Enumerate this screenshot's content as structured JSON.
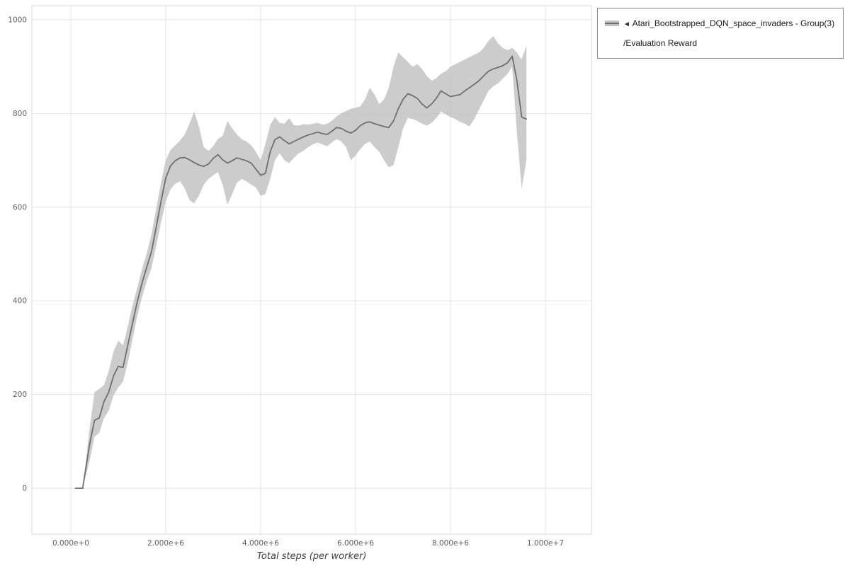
{
  "legend": {
    "entries": [
      {
        "arrow": "◄",
        "label": "Atari_Bootstrapped_DQN_space_invaders - Group(3)",
        "sublabel": "/Evaluation Reward",
        "line_color": "#6f6f6f",
        "band_color": "#c3c3c3"
      }
    ]
  },
  "chart_data": {
    "type": "line",
    "title": "",
    "xlabel": "Total steps (per worker)",
    "ylabel": "",
    "grid": true,
    "legend_position": "outside-top-right",
    "xlim": [
      -820000,
      10970000
    ],
    "ylim": [
      -98,
      1030
    ],
    "x_tick_values": [
      0,
      2000000,
      4000000,
      6000000,
      8000000,
      10000000
    ],
    "x_tick_labels": [
      "0.000e+0",
      "2.000e+6",
      "4.000e+6",
      "6.000e+6",
      "8.000e+6",
      "1.000e+7"
    ],
    "y_tick_values": [
      0,
      200,
      400,
      600,
      800,
      1000
    ],
    "y_tick_labels": [
      "0",
      "200",
      "400",
      "600",
      "800",
      "1000"
    ],
    "grid_color": "#e4e4e4",
    "frame_color": "#dadada",
    "plot_bg": "#ffffff",
    "series": [
      {
        "name": "Atari_Bootstrapped_DQN_space_invaders - Group(3)/Evaluation Reward",
        "line_color": "#6f6f6f",
        "band_color": "#c3c3c3",
        "x": [
          100000,
          250000,
          400000,
          500000,
          600000,
          700000,
          800000,
          900000,
          1000000,
          1100000,
          1200000,
          1300000,
          1400000,
          1500000,
          1600000,
          1700000,
          1800000,
          1900000,
          2000000,
          2100000,
          2200000,
          2300000,
          2400000,
          2500000,
          2600000,
          2700000,
          2800000,
          2900000,
          3000000,
          3100000,
          3200000,
          3300000,
          3400000,
          3500000,
          3600000,
          3700000,
          3800000,
          3900000,
          4000000,
          4100000,
          4200000,
          4300000,
          4400000,
          4500000,
          4600000,
          4700000,
          4800000,
          4900000,
          5000000,
          5100000,
          5200000,
          5300000,
          5400000,
          5500000,
          5600000,
          5700000,
          5800000,
          5900000,
          6000000,
          6100000,
          6200000,
          6300000,
          6400000,
          6500000,
          6600000,
          6700000,
          6800000,
          6900000,
          7000000,
          7100000,
          7200000,
          7300000,
          7400000,
          7500000,
          7600000,
          7700000,
          7800000,
          7900000,
          8000000,
          8100000,
          8200000,
          8300000,
          8400000,
          8500000,
          8600000,
          8700000,
          8800000,
          8900000,
          9000000,
          9100000,
          9200000,
          9300000,
          9400000,
          9500000,
          9600000
        ],
        "mean": [
          0,
          0,
          95,
          145,
          150,
          185,
          205,
          240,
          260,
          258,
          305,
          352,
          398,
          438,
          472,
          505,
          558,
          612,
          662,
          688,
          699,
          705,
          706,
          701,
          695,
          690,
          687,
          692,
          704,
          712,
          701,
          694,
          699,
          705,
          702,
          699,
          694,
          681,
          668,
          672,
          718,
          744,
          750,
          742,
          735,
          740,
          745,
          750,
          754,
          757,
          760,
          757,
          755,
          762,
          770,
          768,
          762,
          758,
          764,
          774,
          780,
          782,
          778,
          775,
          772,
          770,
          784,
          810,
          830,
          842,
          838,
          832,
          820,
          812,
          820,
          832,
          848,
          842,
          836,
          838,
          840,
          848,
          855,
          862,
          870,
          880,
          890,
          895,
          898,
          902,
          908,
          922,
          870,
          792,
          788
        ],
        "lower": [
          0,
          0,
          60,
          110,
          118,
          150,
          165,
          198,
          215,
          228,
          268,
          318,
          368,
          408,
          442,
          470,
          518,
          568,
          612,
          638,
          650,
          655,
          640,
          615,
          608,
          625,
          648,
          660,
          668,
          675,
          648,
          605,
          628,
          652,
          660,
          655,
          648,
          642,
          624,
          628,
          660,
          700,
          715,
          700,
          694,
          705,
          715,
          720,
          728,
          734,
          738,
          734,
          730,
          738,
          745,
          740,
          728,
          700,
          710,
          724,
          735,
          740,
          728,
          718,
          700,
          685,
          690,
          728,
          768,
          790,
          788,
          784,
          778,
          774,
          780,
          790,
          804,
          798,
          792,
          788,
          782,
          778,
          772,
          788,
          808,
          828,
          848,
          858,
          864,
          874,
          884,
          900,
          758,
          640,
          700
        ],
        "upper": [
          0,
          0,
          130,
          205,
          212,
          220,
          250,
          292,
          315,
          305,
          345,
          390,
          428,
          468,
          502,
          542,
          598,
          652,
          700,
          722,
          732,
          742,
          755,
          778,
          804,
          772,
          728,
          720,
          730,
          746,
          752,
          784,
          768,
          755,
          745,
          740,
          732,
          718,
          700,
          735,
          775,
          792,
          780,
          778,
          790,
          775,
          774,
          777,
          776,
          778,
          780,
          776,
          778,
          784,
          794,
          800,
          805,
          810,
          812,
          815,
          830,
          855,
          840,
          820,
          830,
          855,
          900,
          930,
          920,
          910,
          900,
          905,
          895,
          880,
          870,
          875,
          885,
          890,
          900,
          905,
          910,
          915,
          920,
          925,
          930,
          940,
          955,
          965,
          950,
          940,
          935,
          940,
          930,
          915,
          945
        ]
      }
    ]
  }
}
